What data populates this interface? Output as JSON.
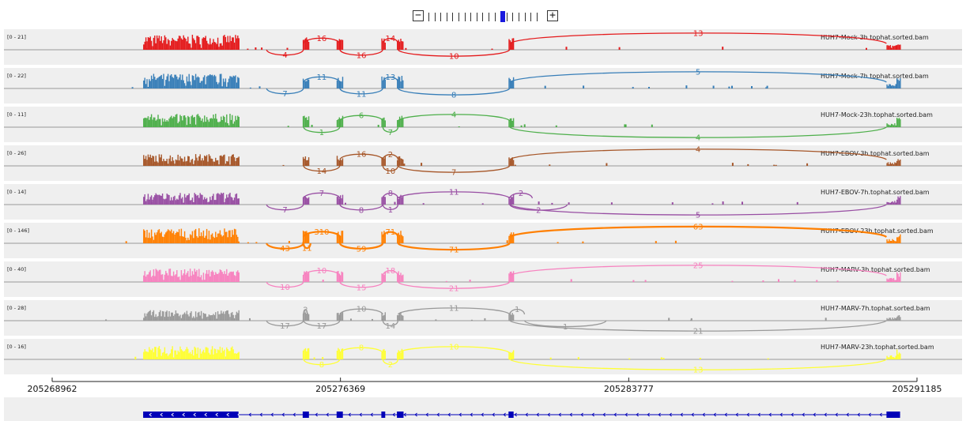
{
  "zoom": {
    "minus_label": "−",
    "plus_label": "+",
    "levels": 19,
    "selected": 12
  },
  "axis": {
    "start": 205268962,
    "end": 205291185,
    "tick_labels": [
      "205268962",
      "205276369",
      "205283777",
      "205291185"
    ]
  },
  "colors": {
    "panel_bg": "#efefef",
    "baseline": "#999999",
    "gene": "#0000b8"
  },
  "tracks": [
    {
      "name": "HUH7-Mock-3h.tophat.sorted.bam",
      "range": "[0 - 21]",
      "color": "#e41a1c",
      "scale": 1.0,
      "junctions": [
        {
          "from": 205274470,
          "to": 205275420,
          "count": "4",
          "side": "below"
        },
        {
          "from": 205275420,
          "to": 205276355,
          "count": "16",
          "side": "above"
        },
        {
          "from": 205276355,
          "to": 205277460,
          "count": "16",
          "side": "below"
        },
        {
          "from": 205277460,
          "to": 205277850,
          "count": "14",
          "side": "above"
        },
        {
          "from": 205277850,
          "to": 205280720,
          "count": "10",
          "side": "below"
        },
        {
          "from": 205280720,
          "to": 205290400,
          "count": "13",
          "side": "above"
        }
      ]
    },
    {
      "name": "HUH7-Mock-7h.tophat.sorted.bam",
      "range": "[0 - 22]",
      "color": "#377eb8",
      "scale": 1.0,
      "junctions": [
        {
          "from": 205274470,
          "to": 205275420,
          "count": "7",
          "side": "below"
        },
        {
          "from": 205275420,
          "to": 205276355,
          "count": "11",
          "side": "above"
        },
        {
          "from": 205276355,
          "to": 205277460,
          "count": "11",
          "side": "below"
        },
        {
          "from": 205277460,
          "to": 205277850,
          "count": "13",
          "side": "above"
        },
        {
          "from": 205277850,
          "to": 205280720,
          "count": "8",
          "side": "below"
        },
        {
          "from": 205280720,
          "to": 205290400,
          "count": "5",
          "side": "above"
        }
      ]
    },
    {
      "name": "HUH7-Mock-23h.tophat.sorted.bam",
      "range": "[0 - 11]",
      "color": "#4daf4a",
      "scale": 0.9,
      "junctions": [
        {
          "from": 205275420,
          "to": 205276355,
          "count": "1",
          "side": "below"
        },
        {
          "from": 205276355,
          "to": 205277460,
          "count": "6",
          "side": "above"
        },
        {
          "from": 205277460,
          "to": 205277850,
          "count": "7",
          "side": "below"
        },
        {
          "from": 205277850,
          "to": 205280720,
          "count": "4",
          "side": "above"
        },
        {
          "from": 205280720,
          "to": 205290400,
          "count": "4",
          "side": "below"
        }
      ]
    },
    {
      "name": "HUH7-EBOV-3h.tophat.sorted.bam",
      "range": "[0 - 26]",
      "color": "#a65628",
      "scale": 0.8,
      "junctions": [
        {
          "from": 205275420,
          "to": 205276355,
          "count": "14",
          "side": "below"
        },
        {
          "from": 205276355,
          "to": 205277460,
          "count": "16",
          "side": "above"
        },
        {
          "from": 205277460,
          "to": 205277850,
          "count": "2",
          "side": "above"
        },
        {
          "from": 205277460,
          "to": 205277850,
          "count": "10",
          "side": "below"
        },
        {
          "from": 205277850,
          "to": 205280720,
          "count": "7",
          "side": "below"
        },
        {
          "from": 205280720,
          "to": 205290400,
          "count": "4",
          "side": "above"
        }
      ]
    },
    {
      "name": "HUH7-EBOV-7h.tophat.sorted.bam",
      "range": "[0 - 14]",
      "color": "#984ea3",
      "scale": 0.8,
      "junctions": [
        {
          "from": 205274470,
          "to": 205275420,
          "count": "7",
          "side": "below"
        },
        {
          "from": 205275420,
          "to": 205276355,
          "count": "7",
          "side": "above"
        },
        {
          "from": 205276355,
          "to": 205277460,
          "count": "8",
          "side": "below"
        },
        {
          "from": 205277460,
          "to": 205277850,
          "count": "8",
          "side": "above"
        },
        {
          "from": 205277460,
          "to": 205277850,
          "count": "1",
          "side": "below"
        },
        {
          "from": 205277850,
          "to": 205280720,
          "count": "11",
          "side": "above"
        },
        {
          "from": 205280720,
          "to": 205281300,
          "count": "2",
          "side": "above"
        },
        {
          "from": 205280720,
          "to": 205282200,
          "count": "2",
          "side": "below"
        },
        {
          "from": 205280720,
          "to": 205290400,
          "count": "5",
          "side": "below"
        }
      ]
    },
    {
      "name": "HUH7-EBOV-23h.tophat.sorted.bam",
      "range": "[0 - 146]",
      "color": "#ff7f00",
      "scale": 1.0,
      "junctions": [
        {
          "from": 205274470,
          "to": 205275420,
          "count": "43",
          "side": "below"
        },
        {
          "from": 205275420,
          "to": 205275600,
          "count": "11",
          "side": "below"
        },
        {
          "from": 205275420,
          "to": 205276355,
          "count": "310",
          "side": "above"
        },
        {
          "from": 205276355,
          "to": 205277460,
          "count": "59",
          "side": "below"
        },
        {
          "from": 205277460,
          "to": 205277850,
          "count": "71",
          "side": "above"
        },
        {
          "from": 205277850,
          "to": 205280720,
          "count": "71",
          "side": "below"
        },
        {
          "from": 205280720,
          "to": 205290400,
          "count": "63",
          "side": "above"
        }
      ]
    },
    {
      "name": "HUH7-MARV-3h.tophat.sorted.bam",
      "range": "[0 - 40]",
      "color": "#f781bf",
      "scale": 0.9,
      "junctions": [
        {
          "from": 205274470,
          "to": 205275420,
          "count": "10",
          "side": "below"
        },
        {
          "from": 205275420,
          "to": 205276355,
          "count": "10",
          "side": "above"
        },
        {
          "from": 205276355,
          "to": 205277460,
          "count": "15",
          "side": "below"
        },
        {
          "from": 205277460,
          "to": 205277850,
          "count": "18",
          "side": "above"
        },
        {
          "from": 205277850,
          "to": 205280720,
          "count": "21",
          "side": "below"
        },
        {
          "from": 205280720,
          "to": 205290400,
          "count": "25",
          "side": "above"
        }
      ]
    },
    {
      "name": "HUH7-MARV-7h.tophat.sorted.bam",
      "range": "[0 - 28]",
      "color": "#999999",
      "scale": 0.7,
      "junctions": [
        {
          "from": 205274470,
          "to": 205275420,
          "count": "17",
          "side": "below"
        },
        {
          "from": 205275420,
          "to": 205275520,
          "count": "2",
          "side": "above"
        },
        {
          "from": 205275420,
          "to": 205276355,
          "count": "17",
          "side": "below"
        },
        {
          "from": 205276355,
          "to": 205277460,
          "count": "10",
          "side": "above"
        },
        {
          "from": 205277460,
          "to": 205277850,
          "count": "14",
          "side": "below"
        },
        {
          "from": 205277850,
          "to": 205280720,
          "count": "11",
          "side": "above"
        },
        {
          "from": 205280720,
          "to": 205281100,
          "count": "1",
          "side": "above"
        },
        {
          "from": 205281100,
          "to": 205283200,
          "count": "1",
          "side": "below"
        },
        {
          "from": 205280720,
          "to": 205290400,
          "count": "21",
          "side": "below"
        }
      ]
    },
    {
      "name": "HUH7-MARV-23h.tophat.sorted.bam",
      "range": "[0 - 16]",
      "color": "#ffff33",
      "scale": 0.9,
      "junctions": [
        {
          "from": 205275420,
          "to": 205276355,
          "count": "8",
          "side": "below"
        },
        {
          "from": 205276355,
          "to": 205277460,
          "count": "8",
          "side": "above"
        },
        {
          "from": 205277460,
          "to": 205277850,
          "count": "2",
          "side": "below"
        },
        {
          "from": 205277850,
          "to": 205280720,
          "count": "10",
          "side": "above"
        },
        {
          "from": 205280720,
          "to": 205290400,
          "count": "13",
          "side": "below"
        }
      ]
    }
  ],
  "exons": [
    [
      205271300,
      205273750
    ],
    [
      205275400,
      205275560
    ],
    [
      205276270,
      205276430
    ],
    [
      205277420,
      205277520
    ],
    [
      205277820,
      205277990
    ],
    [
      205280690,
      205280820
    ],
    [
      205290400,
      205290750
    ]
  ]
}
